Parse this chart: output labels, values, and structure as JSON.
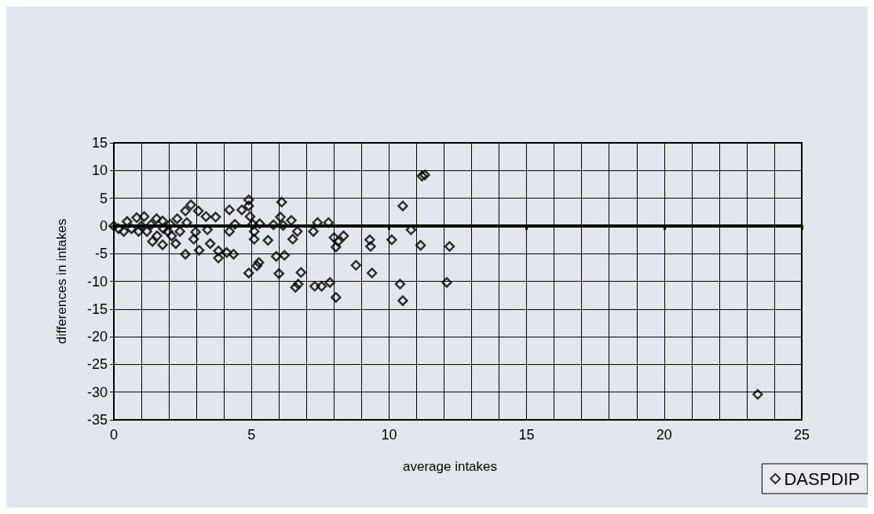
{
  "chart_data": {
    "type": "scatter",
    "xlabel": "average intakes",
    "ylabel": "differences in intakes",
    "xlim": [
      0,
      25
    ],
    "xticks": [
      0,
      5,
      10,
      15,
      20,
      25
    ],
    "ylim": [
      -35,
      15
    ],
    "yticks": [
      -35,
      -30,
      -25,
      -20,
      -15,
      -10,
      -5,
      0,
      5,
      10,
      15
    ],
    "grid": true,
    "legend": "bottom right",
    "marker": "diamond",
    "series": [
      {
        "name": "DASPDIP",
        "color": "#000000",
        "x": [
          0,
          0.17,
          0.36,
          0.48,
          0.64,
          0.83,
          0.9,
          1.0,
          1.1,
          1.2,
          1.35,
          1.4,
          1.55,
          1.57,
          1.77,
          1.8,
          1.77,
          1.96,
          2.05,
          2.1,
          2.25,
          2.3,
          2.4,
          2.6,
          2.65,
          2.6,
          2.8,
          2.9,
          2.97,
          3.07,
          3.1,
          3.35,
          3.4,
          3.5,
          3.7,
          3.8,
          3.8,
          4.1,
          4.2,
          4.2,
          4.35,
          4.4,
          4.65,
          4.9,
          4.9,
          4.95,
          5.05,
          5.1,
          5.1,
          4.9,
          5.2,
          5.3,
          5.27,
          5.6,
          5.8,
          6.1,
          6.05,
          6.15,
          6.45,
          6.67,
          6.5,
          5.9,
          6.2,
          6.0,
          6.8,
          6.6,
          6.7,
          7.25,
          7.4,
          7.8,
          7.3,
          7.55,
          7.85,
          8.07,
          8.0,
          8.15,
          8.35,
          8.07,
          8.8,
          9.3,
          9.33,
          9.38,
          10.1,
          11.2,
          11.3,
          10.5,
          10.8,
          11.15,
          12.2,
          10.4,
          12.1,
          10.5,
          23.4
        ],
        "values": [
          0,
          -0.5,
          -1,
          0.8,
          -0.5,
          1.5,
          -1,
          0,
          1.7,
          -1,
          0.2,
          -2.8,
          1.3,
          -1.8,
          0.9,
          -0.5,
          -3.4,
          -1,
          0.3,
          -1.8,
          -3.2,
          1.3,
          -1,
          2.7,
          0.6,
          -5.1,
          3.8,
          -2.4,
          -1.1,
          2.7,
          -4.4,
          1.7,
          -0.7,
          -3.2,
          1.6,
          -4.5,
          -5.8,
          -4.8,
          2.9,
          -1,
          -5.1,
          0.3,
          2.9,
          4.7,
          3.6,
          1.7,
          0.3,
          -1,
          -2.4,
          -8.5,
          -7.2,
          0.4,
          -6.6,
          -2.6,
          0.2,
          4.3,
          1.6,
          0.1,
          1,
          -1,
          -2.4,
          -5.5,
          -5.3,
          -8.6,
          -8.4,
          -11.1,
          -10.5,
          -1,
          0.6,
          0.6,
          -10.9,
          -10.9,
          -10.2,
          -12.9,
          -2.1,
          -2.8,
          -1.8,
          -3.8,
          -7.1,
          -2.5,
          -3.7,
          -8.5,
          -2.5,
          9,
          9.2,
          3.6,
          -0.7,
          -3.5,
          -3.7,
          -10.5,
          -10.2,
          -13.5,
          -30.4
        ]
      }
    ]
  }
}
